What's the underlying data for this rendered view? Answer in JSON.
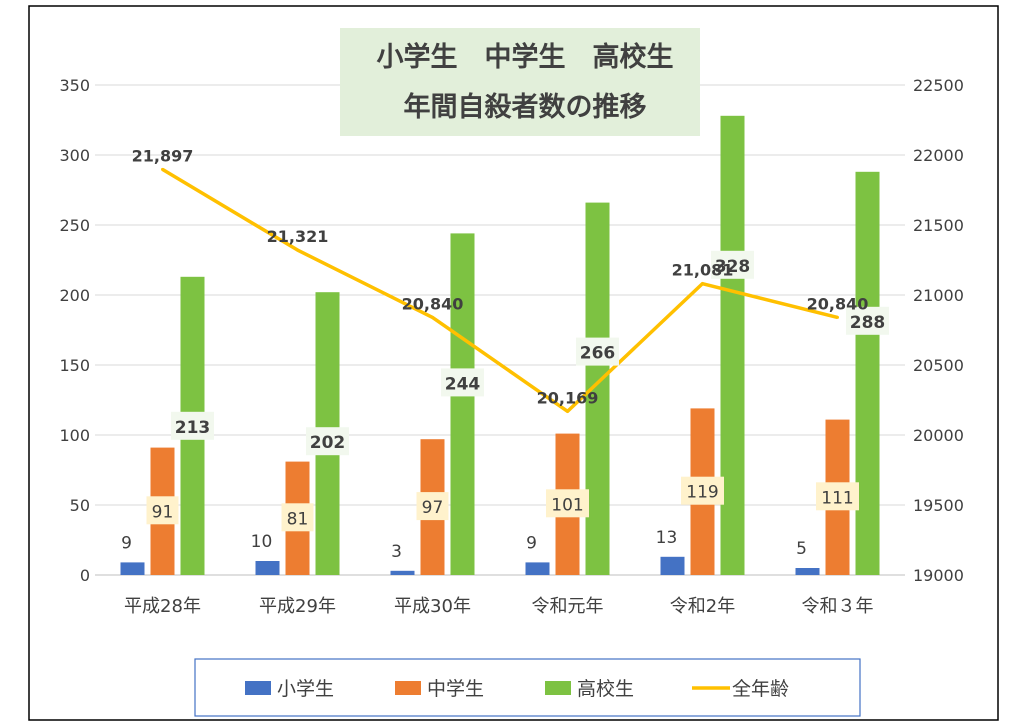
{
  "chart_data": {
    "type": "bar",
    "title_lines": [
      "小学生　中学生　高校生",
      "年間自殺者数の推移"
    ],
    "categories": [
      "平成28年",
      "平成29年",
      "平成30年",
      "令和元年",
      "令和2年",
      "令和３年"
    ],
    "series": [
      {
        "name": "小学生",
        "type": "bar",
        "axis": "left",
        "color": "#4472C4",
        "values": [
          9,
          10,
          3,
          9,
          13,
          5
        ]
      },
      {
        "name": "中学生",
        "type": "bar",
        "axis": "left",
        "color": "#ED7D31",
        "values": [
          91,
          81,
          97,
          101,
          119,
          111
        ]
      },
      {
        "name": "高校生",
        "type": "bar",
        "axis": "left",
        "color": "#7DC242",
        "values": [
          213,
          202,
          244,
          266,
          328,
          288
        ]
      },
      {
        "name": "全年齢",
        "type": "line",
        "axis": "right",
        "color": "#FFC000",
        "values": [
          21897,
          21321,
          20840,
          20169,
          21081,
          20840
        ]
      }
    ],
    "line_labels": [
      "21,897",
      "21,321",
      "20,840",
      "20,169",
      "21,081",
      "20,840"
    ],
    "y_left": {
      "range": [
        0,
        350
      ],
      "ticks": [
        "0",
        "50",
        "100",
        "150",
        "200",
        "250",
        "300",
        "350"
      ]
    },
    "y_right": {
      "range": [
        19000,
        22500
      ],
      "ticks": [
        "19000",
        "19500",
        "20000",
        "20500",
        "21000",
        "21500",
        "22000",
        "22500"
      ]
    },
    "legend": {
      "position": "bottom",
      "items": [
        "小学生",
        "中学生",
        "高校生",
        "全年齢"
      ]
    },
    "colors": {
      "title_bg": "#E2EFDA",
      "label_bg_orange": "#FFF2CC",
      "label_bg_green": "#F2F8EE",
      "legend_border": "#4472C4",
      "axis_text": "#404040"
    }
  }
}
